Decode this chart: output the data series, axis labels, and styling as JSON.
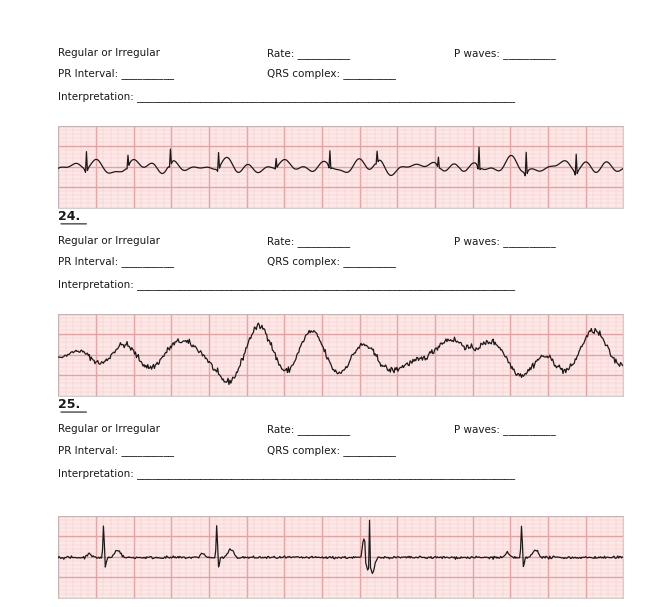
{
  "bg_color": "#ffffff",
  "grid_bg": "#fde8e8",
  "grid_major_color": "#e8a0a0",
  "grid_minor_color": "#f5c8c8",
  "ecg_color": "#1a1a1a",
  "text_color": "#1a1a1a",
  "sections": [
    {
      "has_number": false,
      "number": ""
    },
    {
      "has_number": true,
      "number": "24."
    },
    {
      "has_number": true,
      "number": "25."
    }
  ],
  "line1_cols": [
    0.0,
    0.37,
    0.7
  ],
  "line1_texts": [
    "Regular or Irregular",
    "Rate: __________",
    "P waves: __________"
  ],
  "line2_cols": [
    0.0,
    0.37
  ],
  "line2_texts": [
    "PR Interval: __________",
    "QRS complex: __________"
  ],
  "line3_text": "Interpretation: ________________________________________________________________________",
  "font_size": 7.5,
  "number_font_size": 9.0
}
